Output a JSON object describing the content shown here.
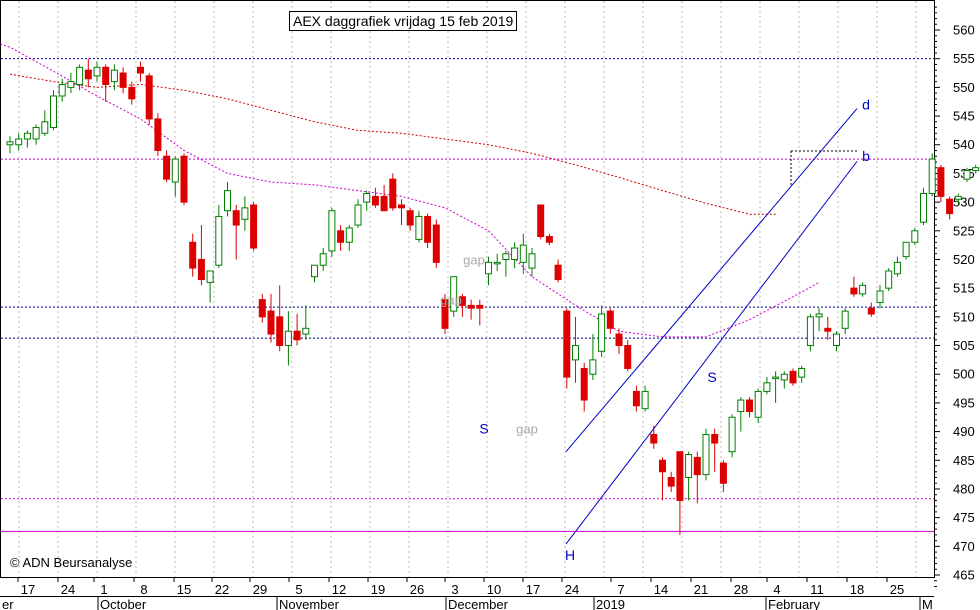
{
  "title": "AEX daggrafiek vrijdag 15 feb 2019",
  "copyright": "© ADN Beursanalyse",
  "chart_data": {
    "type": "candlestick",
    "y_axis": {
      "range": [
        463,
        564
      ],
      "ticks": [
        465,
        470,
        475,
        480,
        485,
        490,
        495,
        500,
        505,
        510,
        515,
        520,
        525,
        530,
        535,
        540,
        545,
        550,
        555,
        560
      ],
      "side": "right"
    },
    "x_axis": {
      "day_labels": [
        "17",
        "24",
        "1",
        "8",
        "15",
        "22",
        "29",
        "5",
        "12",
        "19",
        "26",
        "3",
        "10",
        "17",
        "24",
        "7",
        "14",
        "21",
        "28",
        "4",
        "11",
        "18",
        "25"
      ],
      "month_labels": [
        "er",
        "October",
        "November",
        "December",
        "2019",
        "February",
        "M"
      ]
    },
    "grid": "vertical dotted",
    "horizontal_levels": [
      {
        "value": 555,
        "color": "#000080",
        "style": "dotted"
      },
      {
        "value": 537.5,
        "color": "#cc00cc",
        "style": "dotted"
      },
      {
        "value": 511.7,
        "color": "#000080",
        "style": "dotted"
      },
      {
        "value": 506.3,
        "color": "#000080",
        "style": "dotted"
      },
      {
        "value": 478.3,
        "color": "#cc00cc",
        "style": "dotted"
      },
      {
        "value": 472.6,
        "color": "#cc00cc",
        "style": "solid"
      }
    ],
    "annotations": [
      {
        "text": "gap",
        "x": "Dec 3",
        "y": 520,
        "color": "#aaaaaa"
      },
      {
        "text": "gap",
        "x": "Nov 29",
        "y": 513,
        "color": "#aaaaaa"
      },
      {
        "text": "gap",
        "x": "Dec 18",
        "y": 490.5,
        "color": "#aaaaaa"
      },
      {
        "text": "S",
        "x": "Dec 7",
        "y": 490.5,
        "color": "#0000cc"
      },
      {
        "text": "S",
        "x": "Jan 22",
        "y": 499.5,
        "color": "#0000cc"
      },
      {
        "text": "H",
        "x": "Dec 24",
        "y": 468.5,
        "color": "#0000cc"
      },
      {
        "text": "d",
        "x": "Feb 18",
        "y": 547,
        "color": "#0000cc"
      },
      {
        "text": "b",
        "x": "Feb 18",
        "y": 538,
        "color": "#0000cc"
      }
    ],
    "trend_channel": {
      "upper": [
        {
          "date": "Dec 24",
          "value": 486.5
        },
        {
          "date": "Feb 18",
          "value": 546.3
        }
      ],
      "lower": [
        {
          "date": "Dec 24",
          "value": 470.4
        },
        {
          "date": "Feb 18",
          "value": 537.1
        }
      ]
    },
    "resistance_box": [
      {
        "date": "Feb 7",
        "value": 538.9
      },
      {
        "date": "Feb 18",
        "value": 538.9
      }
    ],
    "moving_averages": [
      {
        "name": "MA short",
        "color": "#cc0000",
        "style": "dotted",
        "points": [
          [
            0,
            552.3
          ],
          [
            5,
            551
          ],
          [
            10,
            550
          ],
          [
            15,
            550.5
          ],
          [
            20,
            549.5
          ],
          [
            25,
            548
          ],
          [
            30,
            546
          ],
          [
            35,
            544
          ],
          [
            40,
            542.5
          ],
          [
            45,
            542
          ],
          [
            50,
            541
          ],
          [
            55,
            540
          ],
          [
            60,
            538.5
          ],
          [
            65,
            536.5
          ],
          [
            70,
            534.3
          ],
          [
            75,
            532
          ],
          [
            80,
            529.8
          ],
          [
            85,
            527.9
          ],
          [
            88,
            527.9
          ]
        ]
      },
      {
        "name": "MA long",
        "color": "#cc00cc",
        "style": "dotted",
        "points": [
          [
            -2,
            558
          ],
          [
            0,
            557
          ],
          [
            5,
            552.8
          ],
          [
            10,
            548.5
          ],
          [
            15,
            544.5
          ],
          [
            20,
            539
          ],
          [
            25,
            535
          ],
          [
            30,
            533.5
          ],
          [
            35,
            533
          ],
          [
            40,
            532
          ],
          [
            45,
            531
          ],
          [
            50,
            529
          ],
          [
            55,
            525
          ],
          [
            60,
            517
          ],
          [
            65,
            512
          ],
          [
            70,
            507.5
          ],
          [
            75,
            506.5
          ],
          [
            80,
            506.5
          ],
          [
            85,
            509.5
          ],
          [
            90,
            513.5
          ],
          [
            93,
            516
          ]
        ]
      }
    ],
    "candles": [
      {
        "d": "Sep 17",
        "o": 540,
        "h": 541.5,
        "l": 538.5,
        "c": 540.5
      },
      {
        "d": "Sep 18",
        "o": 540,
        "h": 542,
        "l": 539,
        "c": 541
      },
      {
        "d": "Sep 19",
        "o": 541,
        "h": 542.5,
        "l": 539.5,
        "c": 542
      },
      {
        "d": "Sep 20",
        "o": 541,
        "h": 543.5,
        "l": 540,
        "c": 543
      },
      {
        "d": "Sep 21",
        "o": 542,
        "h": 546,
        "l": 541.5,
        "c": 544
      },
      {
        "d": "Sep 24",
        "o": 543,
        "h": 549.5,
        "l": 542.5,
        "c": 548.5
      },
      {
        "d": "Sep 25",
        "o": 548.5,
        "h": 551.5,
        "l": 547.5,
        "c": 550.5
      },
      {
        "d": "Sep 26",
        "o": 550,
        "h": 552.5,
        "l": 549,
        "c": 551
      },
      {
        "d": "Sep 27",
        "o": 550.5,
        "h": 554,
        "l": 549.5,
        "c": 553.5
      },
      {
        "d": "Sep 28",
        "o": 553,
        "h": 555,
        "l": 550,
        "c": 551.5
      },
      {
        "d": "Oct 1",
        "o": 552,
        "h": 554.5,
        "l": 551,
        "c": 553.5
      },
      {
        "d": "Oct 2",
        "o": 553.5,
        "h": 554,
        "l": 547.5,
        "c": 550.5
      },
      {
        "d": "Oct 3",
        "o": 551,
        "h": 554,
        "l": 549.5,
        "c": 553
      },
      {
        "d": "Oct 4",
        "o": 552.5,
        "h": 553.5,
        "l": 549,
        "c": 550
      },
      {
        "d": "Oct 5",
        "o": 550,
        "h": 551,
        "l": 547,
        "c": 548
      },
      {
        "d": "Oct 8",
        "o": 553.5,
        "h": 554.5,
        "l": 551,
        "c": 552.5
      },
      {
        "d": "Oct 9",
        "o": 552,
        "h": 552.5,
        "l": 543.5,
        "c": 544.5
      },
      {
        "d": "Oct 10",
        "o": 544.5,
        "h": 545.5,
        "l": 538,
        "c": 539
      },
      {
        "d": "Oct 11",
        "o": 538,
        "h": 539,
        "l": 533.5,
        "c": 534
      },
      {
        "d": "Oct 12",
        "o": 533.5,
        "h": 538,
        "l": 531,
        "c": 537.5
      },
      {
        "d": "Oct 15",
        "o": 538,
        "h": 538.5,
        "l": 529.5,
        "c": 530
      },
      {
        "d": "Oct 16",
        "o": 523,
        "h": 524.5,
        "l": 517,
        "c": 518.5
      },
      {
        "d": "Oct 17",
        "o": 520,
        "h": 526,
        "l": 515.5,
        "c": 516.5
      },
      {
        "d": "Oct 18",
        "o": 516,
        "h": 518,
        "l": 512.5,
        "c": 518
      },
      {
        "d": "Oct 19",
        "o": 519,
        "h": 529.5,
        "l": 518.5,
        "c": 527.5
      },
      {
        "d": "Oct 22",
        "o": 528.5,
        "h": 533.5,
        "l": 527.5,
        "c": 532
      },
      {
        "d": "Oct 23",
        "o": 528.5,
        "h": 529.5,
        "l": 520,
        "c": 526
      },
      {
        "d": "Oct 24",
        "o": 527,
        "h": 531,
        "l": 525,
        "c": 529
      },
      {
        "d": "Oct 25",
        "o": 529.5,
        "h": 530,
        "l": 521.5,
        "c": 522
      },
      {
        "d": "Oct 26",
        "o": 513,
        "h": 514,
        "l": 509,
        "c": 510
      },
      {
        "d": "Oct 29",
        "o": 511,
        "h": 514,
        "l": 505.5,
        "c": 507
      },
      {
        "d": "Oct 30",
        "o": 510,
        "h": 515.5,
        "l": 504,
        "c": 505
      },
      {
        "d": "Oct 31",
        "o": 505,
        "h": 511,
        "l": 501.5,
        "c": 507.5
      },
      {
        "d": "Nov 1",
        "o": 507.5,
        "h": 510.5,
        "l": 505,
        "c": 506
      },
      {
        "d": "Nov 2",
        "o": 507,
        "h": 512,
        "l": 506,
        "c": 508
      },
      {
        "d": "Nov 5",
        "o": 517,
        "h": 519,
        "l": 516,
        "c": 519
      },
      {
        "d": "Nov 6",
        "o": 519,
        "h": 522,
        "l": 518,
        "c": 521
      },
      {
        "d": "Nov 7",
        "o": 521.5,
        "h": 529,
        "l": 520.5,
        "c": 528.5
      },
      {
        "d": "Nov 8",
        "o": 525,
        "h": 526,
        "l": 521.5,
        "c": 523
      },
      {
        "d": "Nov 9",
        "o": 523,
        "h": 526,
        "l": 521.5,
        "c": 525.5
      },
      {
        "d": "Nov 12",
        "o": 526,
        "h": 530.5,
        "l": 525.5,
        "c": 529.5
      },
      {
        "d": "Nov 13",
        "o": 530,
        "h": 532,
        "l": 528.5,
        "c": 531.5
      },
      {
        "d": "Nov 14",
        "o": 531,
        "h": 532.5,
        "l": 529,
        "c": 529.5
      },
      {
        "d": "Nov 15",
        "o": 531,
        "h": 533,
        "l": 528.5,
        "c": 528.5
      },
      {
        "d": "Nov 16",
        "o": 534,
        "h": 535,
        "l": 528.5,
        "c": 529
      },
      {
        "d": "Nov 19",
        "o": 529.5,
        "h": 530.5,
        "l": 526,
        "c": 529
      },
      {
        "d": "Nov 20",
        "o": 528.5,
        "h": 529,
        "l": 525,
        "c": 526
      },
      {
        "d": "Nov 21",
        "o": 523.5,
        "h": 528.5,
        "l": 523,
        "c": 527.5
      },
      {
        "d": "Nov 22",
        "o": 527.5,
        "h": 528,
        "l": 522,
        "c": 523
      },
      {
        "d": "Nov 23",
        "o": 526,
        "h": 527,
        "l": 518.5,
        "c": 519.5
      },
      {
        "d": "Nov 26",
        "o": 513,
        "h": 514,
        "l": 507,
        "c": 508
      },
      {
        "d": "Nov 27",
        "o": 511,
        "h": 517,
        "l": 510,
        "c": 517
      },
      {
        "d": "Nov 28",
        "o": 513.5,
        "h": 514,
        "l": 510,
        "c": 512
      },
      {
        "d": "Nov 29",
        "o": 512,
        "h": 513,
        "l": 509.5,
        "c": 511.5
      },
      {
        "d": "Nov 30",
        "o": 512,
        "h": 513,
        "l": 508.5,
        "c": 511.5
      },
      {
        "d": "Dec 3",
        "o": 517.5,
        "h": 520.5,
        "l": 515.5,
        "c": 519.5
      },
      {
        "d": "Dec 4",
        "o": 519.5,
        "h": 521,
        "l": 518,
        "c": 519.5
      },
      {
        "d": "Dec 5",
        "o": 520,
        "h": 521.5,
        "l": 517,
        "c": 521
      },
      {
        "d": "Dec 6",
        "o": 520,
        "h": 523,
        "l": 518.5,
        "c": 522
      },
      {
        "d": "Dec 7",
        "o": 519.5,
        "h": 524.5,
        "l": 517.5,
        "c": 522.5
      },
      {
        "d": "Dec 10",
        "o": 518.5,
        "h": 522,
        "l": 517,
        "c": 521
      },
      {
        "d": "Dec 11",
        "o": 529.5,
        "h": 529.5,
        "l": 523.5,
        "c": 524
      },
      {
        "d": "Dec 12",
        "o": 524,
        "h": 524.5,
        "l": 522.5,
        "c": 523
      },
      {
        "d": "Dec 13",
        "o": 519,
        "h": 520,
        "l": 516,
        "c": 516.5
      },
      {
        "d": "Dec 14",
        "o": 511,
        "h": 511.5,
        "l": 497.5,
        "c": 499.5
      },
      {
        "d": "Dec 17",
        "o": 502.5,
        "h": 510,
        "l": 498.5,
        "c": 505
      },
      {
        "d": "Dec 18",
        "o": 501,
        "h": 502,
        "l": 493.5,
        "c": 495.5
      },
      {
        "d": "Dec 19",
        "o": 500,
        "h": 507,
        "l": 499,
        "c": 502.5
      },
      {
        "d": "Dec 20",
        "o": 504,
        "h": 512,
        "l": 503,
        "c": 510.5
      },
      {
        "d": "Dec 21",
        "o": 511,
        "h": 511.5,
        "l": 507,
        "c": 508
      },
      {
        "d": "Dec 24",
        "o": 507,
        "h": 508,
        "l": 503.5,
        "c": 505
      },
      {
        "d": "Dec 27",
        "o": 505,
        "h": 506,
        "l": 500.5,
        "c": 501
      },
      {
        "d": "Dec 28",
        "o": 497,
        "h": 498,
        "l": 493.5,
        "c": 494.5
      },
      {
        "d": "Dec 31",
        "o": 494,
        "h": 498,
        "l": 493.5,
        "c": 497
      },
      {
        "d": "Jan 2",
        "o": 489.5,
        "h": 491,
        "l": 487,
        "c": 488
      },
      {
        "d": "Jan 3",
        "o": 485,
        "h": 485.5,
        "l": 478,
        "c": 483
      },
      {
        "d": "Jan 4",
        "o": 482,
        "h": 483,
        "l": 479.5,
        "c": 480.5
      },
      {
        "d": "Jan 7",
        "o": 486.5,
        "h": 486.5,
        "l": 472,
        "c": 478
      },
      {
        "d": "Jan 8",
        "o": 482,
        "h": 486.5,
        "l": 478,
        "c": 486
      },
      {
        "d": "Jan 9",
        "o": 485.5,
        "h": 486.5,
        "l": 477.5,
        "c": 482.5
      },
      {
        "d": "Jan 10",
        "o": 482.5,
        "h": 490.5,
        "l": 481.5,
        "c": 489.5
      },
      {
        "d": "Jan 11",
        "o": 489.5,
        "h": 490.5,
        "l": 483,
        "c": 488
      },
      {
        "d": "Jan 14",
        "o": 484.5,
        "h": 485,
        "l": 479.5,
        "c": 481
      },
      {
        "d": "Jan 15",
        "o": 486.5,
        "h": 493,
        "l": 485.5,
        "c": 492.5
      },
      {
        "d": "Jan 16",
        "o": 493.5,
        "h": 496,
        "l": 490,
        "c": 495.5
      },
      {
        "d": "Jan 17",
        "o": 495.5,
        "h": 496,
        "l": 492.5,
        "c": 493.5
      },
      {
        "d": "Jan 18",
        "o": 492.5,
        "h": 497.5,
        "l": 491.5,
        "c": 497
      },
      {
        "d": "Jan 21",
        "o": 497,
        "h": 499.5,
        "l": 496.5,
        "c": 498.5
      },
      {
        "d": "Jan 22",
        "o": 499.5,
        "h": 500.5,
        "l": 495,
        "c": 499.5
      },
      {
        "d": "Jan 23",
        "o": 499,
        "h": 500.5,
        "l": 497.5,
        "c": 500
      },
      {
        "d": "Jan 24",
        "o": 500.5,
        "h": 501,
        "l": 498,
        "c": 498.5
      },
      {
        "d": "Jan 25",
        "o": 499.5,
        "h": 501.5,
        "l": 498.5,
        "c": 501
      },
      {
        "d": "Jan 28",
        "o": 505,
        "h": 510.5,
        "l": 504,
        "c": 510
      },
      {
        "d": "Jan 29",
        "o": 510,
        "h": 511.5,
        "l": 507.5,
        "c": 510.5
      },
      {
        "d": "Jan 30",
        "o": 508,
        "h": 510,
        "l": 506,
        "c": 507.5
      },
      {
        "d": "Jan 31",
        "o": 505,
        "h": 507.5,
        "l": 504,
        "c": 507
      },
      {
        "d": "Feb 1",
        "o": 508,
        "h": 511.5,
        "l": 507,
        "c": 511
      },
      {
        "d": "Feb 4",
        "o": 515,
        "h": 517,
        "l": 513.5,
        "c": 514
      },
      {
        "d": "Feb 5",
        "o": 514,
        "h": 516,
        "l": 513.5,
        "c": 515.5
      },
      {
        "d": "Feb 6",
        "o": 511.5,
        "h": 512.5,
        "l": 510,
        "c": 510.5
      },
      {
        "d": "Feb 7",
        "o": 512.5,
        "h": 515.5,
        "l": 511.5,
        "c": 514.5
      },
      {
        "d": "Feb 8",
        "o": 515,
        "h": 518.5,
        "l": 514.5,
        "c": 518
      },
      {
        "d": "Feb 11",
        "o": 517.5,
        "h": 520.5,
        "l": 517,
        "c": 519.5
      },
      {
        "d": "Feb 12",
        "o": 520.5,
        "h": 523,
        "l": 520,
        "c": 523
      },
      {
        "d": "Feb 13",
        "o": 523,
        "h": 525.5,
        "l": 522.5,
        "c": 525
      },
      {
        "d": "Feb 14",
        "o": 526.5,
        "h": 532.5,
        "l": 526,
        "c": 531.5
      },
      {
        "d": "Feb 15",
        "o": 531.5,
        "h": 538.5,
        "l": 531,
        "c": 537.5
      },
      {
        "d": "Feb 15b",
        "o": 536,
        "h": 536.5,
        "l": 530,
        "c": 531
      },
      {
        "d": "Feb 15c",
        "o": 530.5,
        "h": 531,
        "l": 527,
        "c": 528
      },
      {
        "d": "Feb 15d",
        "o": 530.5,
        "h": 531.5,
        "l": 529.5,
        "c": 531
      },
      {
        "d": "Feb 15e",
        "o": 534,
        "h": 536,
        "l": 533.5,
        "c": 535.5
      },
      {
        "d": "Feb 15f",
        "o": 535.5,
        "h": 536.5,
        "l": 535,
        "c": 536
      },
      {
        "d": "Feb 15g",
        "o": 537.5,
        "h": 538,
        "l": 533,
        "c": 534
      },
      {
        "d": "Feb 15h",
        "o": 535,
        "h": 541.5,
        "l": 534,
        "c": 540
      }
    ]
  }
}
